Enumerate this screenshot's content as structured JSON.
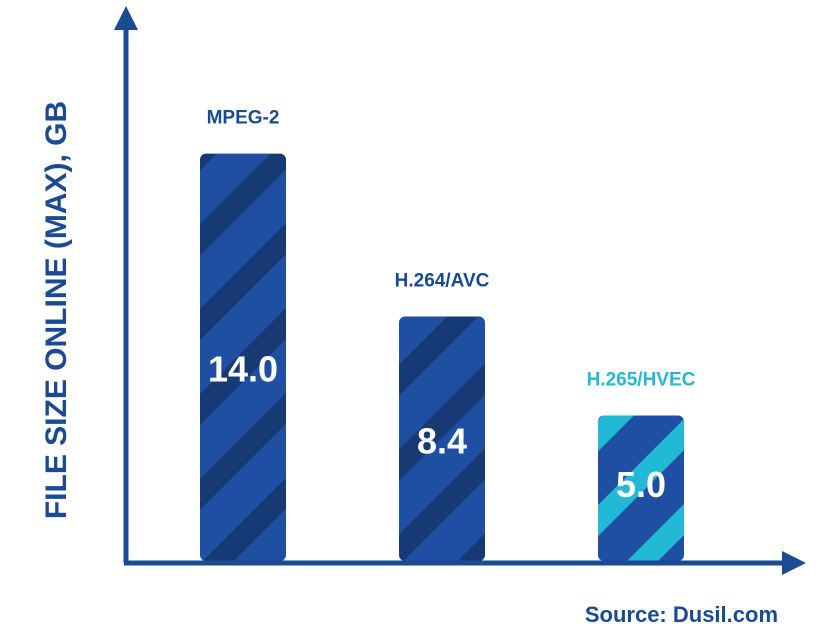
{
  "chart_data": {
    "type": "bar",
    "categories": [
      "MPEG-2",
      "H.264/AVC",
      "H.265/HVEC"
    ],
    "values": [
      14.0,
      8.4,
      5.0
    ],
    "value_labels": [
      "14.0",
      "8.4",
      "5.0"
    ],
    "ylabel": "FILE SIZE ONLINE (MAX), GB",
    "xlabel": "",
    "title": "",
    "ylim": [
      0,
      20
    ],
    "grid": false,
    "source": "Source: Dusil.com"
  },
  "colors": {
    "axis": "#1a4a93",
    "bar": "#1e4fa3",
    "stripe": "#173a75",
    "highlight_stripe": "#22b9d6",
    "highlight_label": "#22b9d6",
    "label": "#1a4a93"
  },
  "highlight_index": 2
}
